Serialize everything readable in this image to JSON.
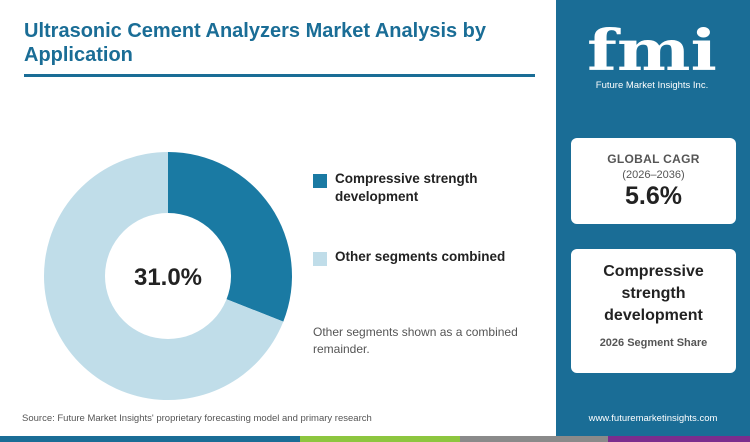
{
  "title": "Ultrasonic Cement Analyzers Market Analysis by Application",
  "chart_data": {
    "type": "pie",
    "donut": true,
    "center_label": "31.0%",
    "slices": [
      {
        "label": "Compressive strength development",
        "value": 31.0,
        "color": "#1a7aa3"
      },
      {
        "label": "Other segments combined",
        "value": 69.0,
        "color": "#c0dde9"
      }
    ],
    "legend_position": "right"
  },
  "legend": {
    "items": [
      {
        "label": "Compressive strength development",
        "color": "#1a7aa3"
      },
      {
        "label": "Other segments combined",
        "color": "#c0dde9"
      }
    ]
  },
  "note": "Other segments shown as a combined remainder.",
  "source": "Source: Future Market Insights' proprietary forecasting model and primary research",
  "sidebar": {
    "logo_text": "fmi",
    "logo_subtitle": "Future Market Insights Inc.",
    "cagr_label": "GLOBAL CAGR",
    "cagr_period": "(2026–2036)",
    "cagr_value": "5.6%",
    "segment_name": "Compressive strength development",
    "segment_caption": "2026 Segment Share",
    "website": "www.futuremarketinsights.com"
  },
  "colors": {
    "brand": "#1a6d96",
    "bar": [
      "#1a6d96",
      "#8dc63f",
      "#8a8a8a",
      "#7b2d8e",
      "#1a6d96"
    ]
  }
}
